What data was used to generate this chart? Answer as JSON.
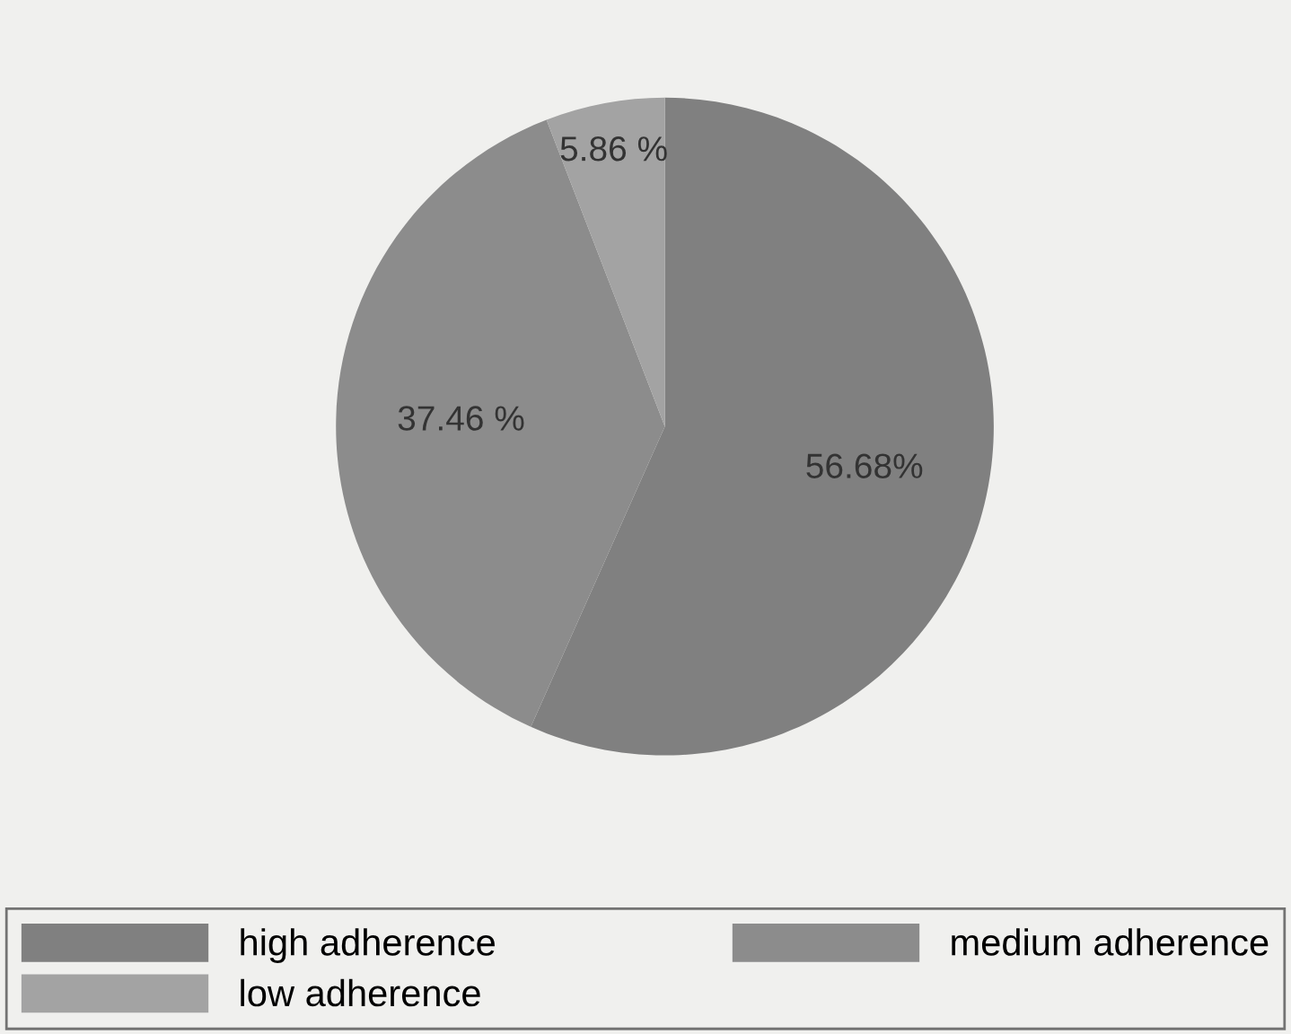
{
  "chart_data": {
    "type": "pie",
    "categories": [
      "high adherence",
      "medium adherence",
      "low adherence"
    ],
    "values": [
      56.68,
      37.46,
      5.86
    ],
    "value_labels": [
      "56.68%",
      "37.46 %",
      "5.86 %"
    ],
    "colors": [
      "#808080",
      "#8c8c8c",
      "#a3a3a3"
    ],
    "legend": "bottom"
  }
}
